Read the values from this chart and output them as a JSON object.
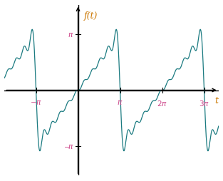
{
  "line_color": "#1a7a80",
  "background_color": "#ffffff",
  "title": "f(t)",
  "xlabel": "t",
  "xlim_left": -5.5,
  "xlim_right": 10.5,
  "ylim_bottom": -4.8,
  "ylim_top": 4.8,
  "pi": 3.14159265,
  "n_terms": 10,
  "tick_color_pi": "#cc4488",
  "label_color": "#cc7700",
  "line_width": 0.9,
  "axis_lw": 1.0
}
